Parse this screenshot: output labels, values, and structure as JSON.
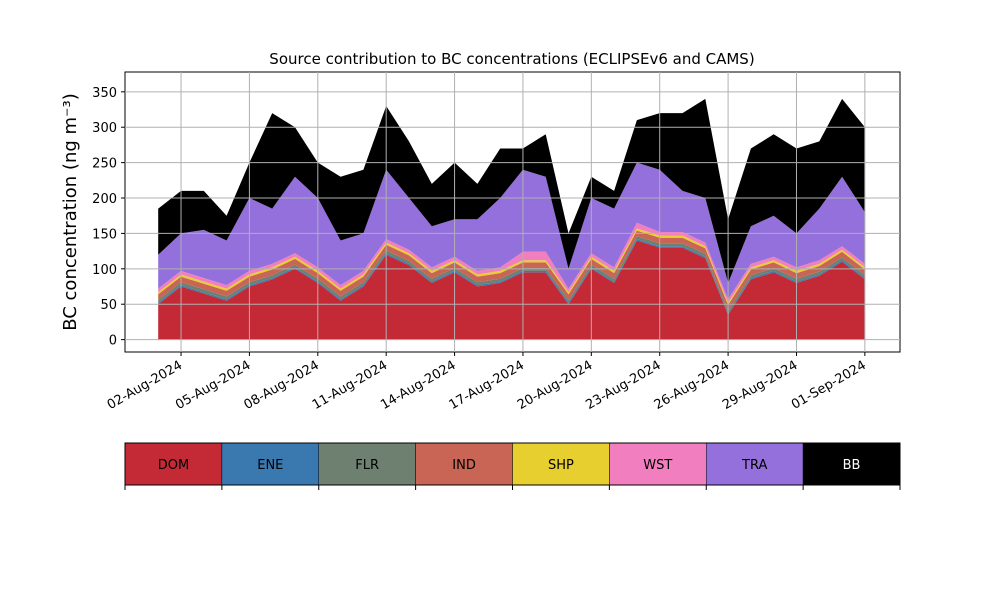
{
  "chart_data": {
    "type": "stacked_area",
    "title": "Source contribution to BC concentrations (ECLIPSEv6 and CAMS)",
    "y_label": "BC concentration (ng m⁻³)",
    "x": [
      "2024-08-01",
      "2024-08-02",
      "2024-08-03",
      "2024-08-04",
      "2024-08-05",
      "2024-08-06",
      "2024-08-07",
      "2024-08-08",
      "2024-08-09",
      "2024-08-10",
      "2024-08-11",
      "2024-08-12",
      "2024-08-13",
      "2024-08-14",
      "2024-08-15",
      "2024-08-16",
      "2024-08-17",
      "2024-08-18",
      "2024-08-19",
      "2024-08-20",
      "2024-08-21",
      "2024-08-22",
      "2024-08-23",
      "2024-08-24",
      "2024-08-25",
      "2024-08-26",
      "2024-08-27",
      "2024-08-28",
      "2024-08-29",
      "2024-08-30",
      "2024-08-31",
      "2024-09-01"
    ],
    "series": [
      {
        "name": "DOM",
        "color": "#c42a36",
        "values": [
          50,
          75,
          65,
          55,
          75,
          85,
          100,
          80,
          55,
          75,
          120,
          105,
          80,
          95,
          75,
          80,
          95,
          95,
          50,
          100,
          80,
          140,
          130,
          130,
          115,
          35,
          85,
          95,
          80,
          90,
          110,
          85
        ]
      },
      {
        "name": "ENE",
        "color": "#3a78b0",
        "values": [
          2,
          2,
          2,
          2,
          2,
          2,
          2,
          2,
          2,
          2,
          2,
          2,
          2,
          2,
          2,
          2,
          2,
          2,
          2,
          2,
          2,
          2,
          2,
          2,
          2,
          2,
          2,
          2,
          2,
          2,
          2,
          2
        ]
      },
      {
        "name": "FLR",
        "color": "#6e8070",
        "values": [
          4,
          4,
          4,
          4,
          4,
          4,
          4,
          4,
          4,
          4,
          4,
          4,
          4,
          4,
          4,
          4,
          4,
          4,
          4,
          4,
          4,
          4,
          4,
          4,
          4,
          4,
          4,
          4,
          4,
          4,
          4,
          4
        ]
      },
      {
        "name": "IND",
        "color": "#c96555",
        "values": [
          8,
          8,
          8,
          8,
          8,
          8,
          8,
          8,
          8,
          8,
          8,
          8,
          8,
          8,
          8,
          8,
          8,
          8,
          8,
          8,
          8,
          8,
          8,
          8,
          8,
          8,
          8,
          8,
          8,
          8,
          8,
          8
        ]
      },
      {
        "name": "SHP",
        "color": "#e8cf30",
        "values": [
          3,
          3,
          3,
          3,
          3,
          3,
          3,
          3,
          3,
          3,
          3,
          3,
          3,
          3,
          3,
          3,
          3,
          3,
          3,
          3,
          3,
          3,
          3,
          3,
          3,
          3,
          3,
          3,
          3,
          3,
          3,
          3
        ]
      },
      {
        "name": "WST",
        "color": "#f17fbf",
        "values": [
          5,
          5,
          5,
          5,
          5,
          5,
          5,
          5,
          5,
          5,
          5,
          5,
          5,
          5,
          5,
          5,
          12,
          12,
          5,
          5,
          5,
          8,
          5,
          5,
          5,
          5,
          5,
          5,
          5,
          5,
          5,
          5
        ]
      },
      {
        "name": "TRA",
        "color": "#9370db",
        "values": [
          48,
          53,
          68,
          63,
          103,
          78,
          108,
          98,
          63,
          53,
          98,
          73,
          58,
          53,
          73,
          98,
          116,
          106,
          28,
          78,
          83,
          85,
          88,
          58,
          63,
          23,
          53,
          58,
          48,
          73,
          98,
          73
        ]
      },
      {
        "name": "BB",
        "color": "#000000",
        "values": [
          65,
          60,
          55,
          35,
          50,
          135,
          70,
          50,
          90,
          90,
          90,
          80,
          60,
          80,
          50,
          70,
          30,
          60,
          50,
          30,
          25,
          60,
          80,
          110,
          140,
          90,
          110,
          115,
          120,
          95,
          110,
          120
        ]
      }
    ],
    "xlim": [
      "2024-07-30T13:00",
      "2024-09-02T13:00"
    ],
    "xticks": [
      {
        "value": "2024-08-02",
        "label": "02-Aug-2024"
      },
      {
        "value": "2024-08-05",
        "label": "05-Aug-2024"
      },
      {
        "value": "2024-08-08",
        "label": "08-Aug-2024"
      },
      {
        "value": "2024-08-11",
        "label": "11-Aug-2024"
      },
      {
        "value": "2024-08-14",
        "label": "14-Aug-2024"
      },
      {
        "value": "2024-08-17",
        "label": "17-Aug-2024"
      },
      {
        "value": "2024-08-20",
        "label": "20-Aug-2024"
      },
      {
        "value": "2024-08-23",
        "label": "23-Aug-2024"
      },
      {
        "value": "2024-08-26",
        "label": "26-Aug-2024"
      },
      {
        "value": "2024-08-29",
        "label": "29-Aug-2024"
      },
      {
        "value": "2024-09-01",
        "label": "01-Sep-2024"
      }
    ],
    "ylim": [
      -17.5,
      378
    ],
    "yticks": [
      0,
      50,
      100,
      150,
      200,
      250,
      300,
      350
    ],
    "grid": true
  }
}
